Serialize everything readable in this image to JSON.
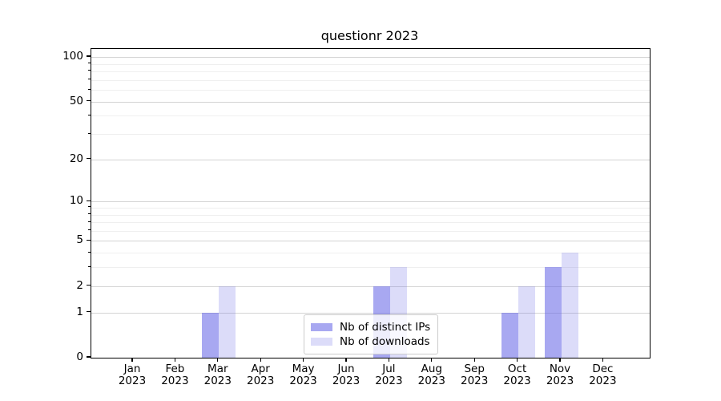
{
  "title": "questionr 2023",
  "chart_data": {
    "type": "bar",
    "title": "questionr 2023",
    "categories": [
      "Jan",
      "Feb",
      "Mar",
      "Apr",
      "May",
      "Jun",
      "Jul",
      "Aug",
      "Sep",
      "Oct",
      "Nov",
      "Dec"
    ],
    "year_label": "2023",
    "x_tick_labels": [
      "Jan 2023",
      "Feb 2023",
      "Mar 2023",
      "Apr 2023",
      "May 2023",
      "Jun 2023",
      "Jul 2023",
      "Aug 2023",
      "Sep 2023",
      "Oct 2023",
      "Nov 2023",
      "Dec 2023"
    ],
    "series": [
      {
        "name": "Nb of distinct IPs",
        "color": "rgba(102,102,230,0.57)",
        "values": [
          0,
          0,
          1,
          0,
          0,
          0,
          2,
          0,
          0,
          1,
          3,
          0
        ]
      },
      {
        "name": "Nb of downloads",
        "color": "rgba(102,102,230,0.23)",
        "values": [
          0,
          0,
          2,
          0,
          0,
          0,
          3,
          0,
          0,
          2,
          4,
          0
        ]
      }
    ],
    "y_axis": {
      "scale": "log1p",
      "major_ticks": [
        0,
        1,
        2,
        5,
        10,
        20,
        50,
        100
      ],
      "minor_gridlines": [
        3,
        4,
        6,
        7,
        8,
        9,
        30,
        40,
        60,
        70,
        80,
        90
      ],
      "range_max": 110
    },
    "legend": {
      "position": "lower-center",
      "entries": [
        "Nb of distinct IPs",
        "Nb of downloads"
      ]
    },
    "style": {
      "major_grid_color": "#d4d4d4",
      "minor_grid_color": "#efefef",
      "axis_color": "#000000",
      "bar_base_color": "#6666e6",
      "background": "#ffffff"
    }
  }
}
